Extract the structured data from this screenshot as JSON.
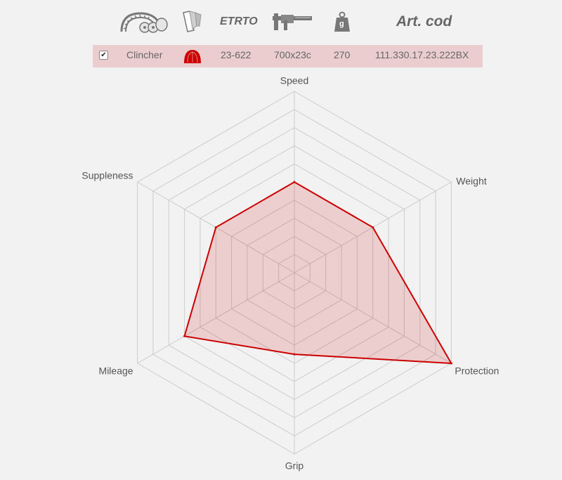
{
  "header": {
    "etrto_label": "ETRTO",
    "weight_icon_letter": "g",
    "art_label": "Art. cod"
  },
  "row": {
    "checked": true,
    "type": "Clincher",
    "etrto": "23-622",
    "size": "700x23c",
    "weight": "270",
    "art_code": "111.330.17.23.222BX"
  },
  "colors": {
    "accent": "#cc0000",
    "row_bg": "#ebcdcf",
    "fill": "rgba(204,0,0,0.15)",
    "grid": "#cccccc",
    "background": "#f2f2f2"
  },
  "chart_data": {
    "type": "radar",
    "axes": [
      "Speed",
      "Weight",
      "Protection",
      "Grip",
      "Mileage",
      "Suppleness"
    ],
    "scale_max": 10,
    "rings": 10,
    "grid": true,
    "series": [
      {
        "values": [
          5,
          5,
          10,
          4.5,
          7,
          5
        ]
      }
    ]
  }
}
